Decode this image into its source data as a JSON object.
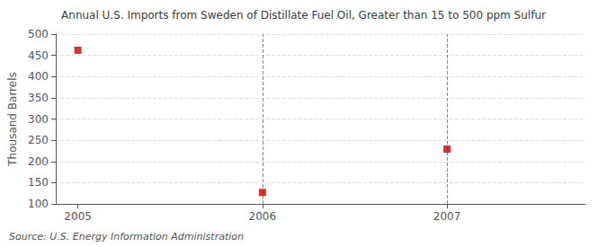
{
  "chart_data": {
    "type": "scatter",
    "title": "Annual U.S. Imports from Sweden of Distillate Fuel Oil, Greater than 15 to 500 ppm Sulfur",
    "y_label": "Thousand Barrels",
    "annotations": [
      "Source: U.S. Energy Information Administration"
    ],
    "x": [
      2005,
      2006,
      2007
    ],
    "values": [
      462,
      127,
      229
    ],
    "color": "#cc0000",
    "marker": "square",
    "vlines": [
      2006,
      2007
    ],
    "xlim": [
      2004.88,
      2007.75
    ],
    "xticks": [
      2005,
      2006,
      2007
    ],
    "ylim": [
      100,
      500
    ],
    "yticks": [
      100,
      150,
      200,
      250,
      300,
      350,
      400,
      450,
      500
    ],
    "grid": true
  }
}
